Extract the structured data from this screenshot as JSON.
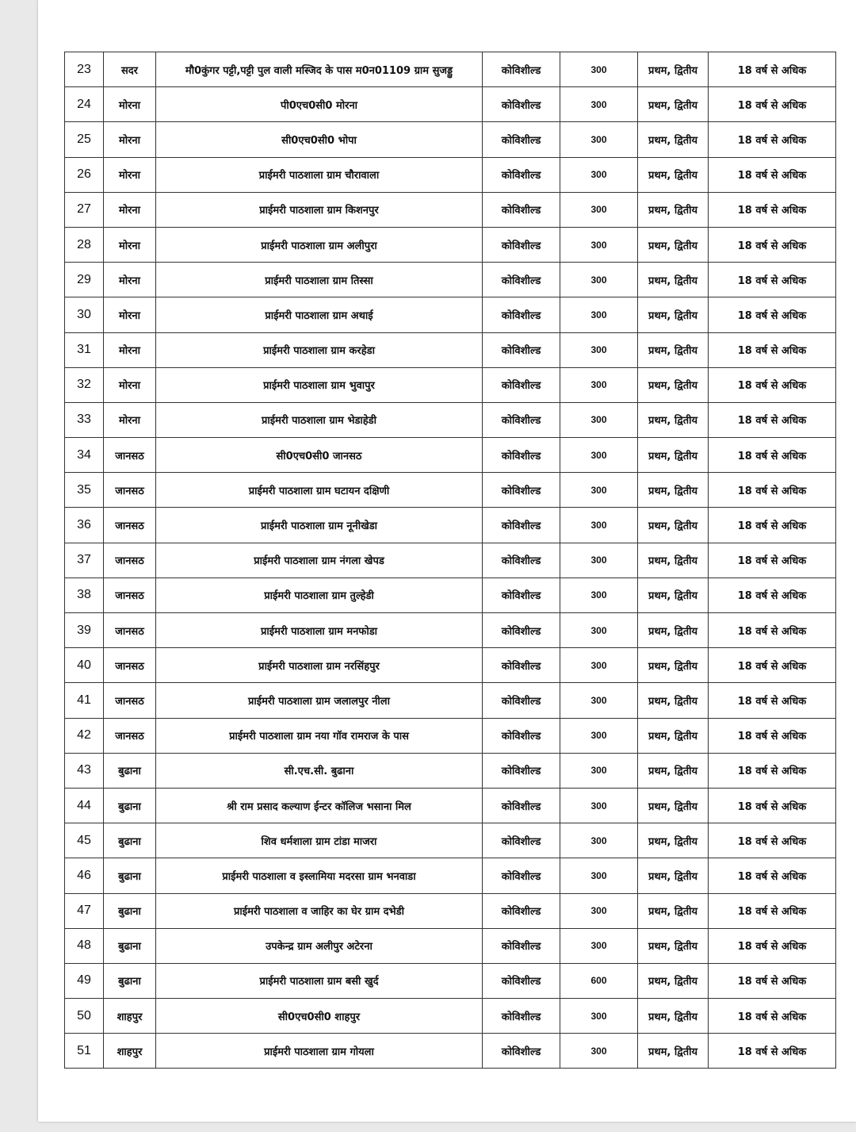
{
  "table": {
    "rows": [
      {
        "sn": "23",
        "block": "सदर",
        "site": "मौ0कुंगर पट्टी,पट्टी पुल वाली मस्जिद के पास म0न01109 ग्राम सुजड्डु",
        "vaccine": "कोविशील्ड",
        "doses": "300",
        "dose_type": "प्रथम, द्वितीय",
        "age": "18 वर्ष से अधिक"
      },
      {
        "sn": "24",
        "block": "मोरना",
        "site": "पी0एच0सी0 मोरना",
        "vaccine": "कोविशील्ड",
        "doses": "300",
        "dose_type": "प्रथम, द्वितीय",
        "age": "18 वर्ष से अधिक"
      },
      {
        "sn": "25",
        "block": "मोरना",
        "site": "सी0एच0सी0 भोपा",
        "vaccine": "कोविशील्ड",
        "doses": "300",
        "dose_type": "प्रथम, द्वितीय",
        "age": "18 वर्ष से अधिक"
      },
      {
        "sn": "26",
        "block": "मोरना",
        "site": "प्राईमरी पाठशाला ग्राम चौरावाला",
        "vaccine": "कोविशील्ड",
        "doses": "300",
        "dose_type": "प्रथम, द्वितीय",
        "age": "18 वर्ष से अधिक"
      },
      {
        "sn": "27",
        "block": "मोरना",
        "site": "प्राईमरी पाठशाला ग्राम किशनपुर",
        "vaccine": "कोविशील्ड",
        "doses": "300",
        "dose_type": "प्रथम, द्वितीय",
        "age": "18 वर्ष से अधिक"
      },
      {
        "sn": "28",
        "block": "मोरना",
        "site": "प्राईमरी पाठशाला ग्राम अलीपुरा",
        "vaccine": "कोविशील्ड",
        "doses": "300",
        "dose_type": "प्रथम, द्वितीय",
        "age": "18 वर्ष से अधिक"
      },
      {
        "sn": "29",
        "block": "मोरना",
        "site": "प्राईमरी पाठशाला ग्राम तिस्सा",
        "vaccine": "कोविशील्ड",
        "doses": "300",
        "dose_type": "प्रथम, द्वितीय",
        "age": "18 वर्ष से अधिक"
      },
      {
        "sn": "30",
        "block": "मोरना",
        "site": "प्राईमरी पाठशाला ग्राम अथाई",
        "vaccine": "कोविशील्ड",
        "doses": "300",
        "dose_type": "प्रथम, द्वितीय",
        "age": "18 वर्ष से अधिक"
      },
      {
        "sn": "31",
        "block": "मोरना",
        "site": "प्राईमरी पाठशाला ग्राम करहेडा",
        "vaccine": "कोविशील्ड",
        "doses": "300",
        "dose_type": "प्रथम, द्वितीय",
        "age": "18 वर्ष से अधिक"
      },
      {
        "sn": "32",
        "block": "मोरना",
        "site": "प्राईमरी पाठशाला ग्राम भुवापुर",
        "vaccine": "कोविशील्ड",
        "doses": "300",
        "dose_type": "प्रथम, द्वितीय",
        "age": "18 वर्ष से अधिक"
      },
      {
        "sn": "33",
        "block": "मोरना",
        "site": "प्राईमरी पाठशाला ग्राम भेडाहेडी",
        "vaccine": "कोविशील्ड",
        "doses": "300",
        "dose_type": "प्रथम, द्वितीय",
        "age": "18 वर्ष से अधिक"
      },
      {
        "sn": "34",
        "block": "जानसठ",
        "site": "सी0एच0सी0 जानसठ",
        "vaccine": "कोविशील्ड",
        "doses": "300",
        "dose_type": "प्रथम, द्वितीय",
        "age": "18 वर्ष से अधिक"
      },
      {
        "sn": "35",
        "block": "जानसठ",
        "site": "प्राईमरी पाठशाला ग्राम घटायन दक्षिणी",
        "vaccine": "कोविशील्ड",
        "doses": "300",
        "dose_type": "प्रथम, द्वितीय",
        "age": "18 वर्ष से अधिक"
      },
      {
        "sn": "36",
        "block": "जानसठ",
        "site": "प्राईमरी पाठशाला ग्राम नूनीखेडा",
        "vaccine": "कोविशील्ड",
        "doses": "300",
        "dose_type": "प्रथम, द्वितीय",
        "age": "18 वर्ष से अधिक"
      },
      {
        "sn": "37",
        "block": "जानसठ",
        "site": "प्राईमरी पाठशाला ग्राम नंगला खेपड",
        "vaccine": "कोविशील्ड",
        "doses": "300",
        "dose_type": "प्रथम, द्वितीय",
        "age": "18 वर्ष से अधिक"
      },
      {
        "sn": "38",
        "block": "जानसठ",
        "site": "प्राईमरी पाठशाला ग्राम तुल्हेडी",
        "vaccine": "कोविशील्ड",
        "doses": "300",
        "dose_type": "प्रथम, द्वितीय",
        "age": "18 वर्ष से अधिक"
      },
      {
        "sn": "39",
        "block": "जानसठ",
        "site": "प्राईमरी पाठशाला ग्राम मनफोडा",
        "vaccine": "कोविशील्ड",
        "doses": "300",
        "dose_type": "प्रथम, द्वितीय",
        "age": "18 वर्ष से अधिक"
      },
      {
        "sn": "40",
        "block": "जानसठ",
        "site": "प्राईमरी पाठशाला ग्राम नरसिंहपुर",
        "vaccine": "कोविशील्ड",
        "doses": "300",
        "dose_type": "प्रथम, द्वितीय",
        "age": "18 वर्ष से अधिक"
      },
      {
        "sn": "41",
        "block": "जानसठ",
        "site": "प्राईमरी पाठशाला ग्राम जलालपुर नीला",
        "vaccine": "कोविशील्ड",
        "doses": "300",
        "dose_type": "प्रथम, द्वितीय",
        "age": "18 वर्ष से अधिक"
      },
      {
        "sn": "42",
        "block": "जानसठ",
        "site": "प्राईमरी पाठशाला ग्राम नया गॉव रामराज के पास",
        "vaccine": "कोविशील्ड",
        "doses": "300",
        "dose_type": "प्रथम, द्वितीय",
        "age": "18 वर्ष से अधिक"
      },
      {
        "sn": "43",
        "block": "बुढाना",
        "site": "सी.एच.सी. बुढाना",
        "vaccine": "कोविशील्ड",
        "doses": "300",
        "dose_type": "प्रथम, द्वितीय",
        "age": "18 वर्ष से अधिक"
      },
      {
        "sn": "44",
        "block": "बुढाना",
        "site": "श्री राम प्रसाद कल्याण ईन्टर कॉलिज भसाना मिल",
        "vaccine": "कोविशील्ड",
        "doses": "300",
        "dose_type": "प्रथम, द्वितीय",
        "age": "18 वर्ष से अधिक"
      },
      {
        "sn": "45",
        "block": "बुढाना",
        "site": "शिव धर्मशाला ग्राम टांडा माजरा",
        "vaccine": "कोविशील्ड",
        "doses": "300",
        "dose_type": "प्रथम, द्वितीय",
        "age": "18 वर्ष से अधिक"
      },
      {
        "sn": "46",
        "block": "बुढाना",
        "site": "प्राईमरी पाठशाला  व इस्लामिया मदरसा ग्राम भनवाडा",
        "vaccine": "कोविशील्ड",
        "doses": "300",
        "dose_type": "प्रथम, द्वितीय",
        "age": "18 वर्ष से अधिक"
      },
      {
        "sn": "47",
        "block": "बुढाना",
        "site": "प्राईमरी पाठशाला व जाहिर का घेर ग्राम दभेडी",
        "vaccine": "कोविशील्ड",
        "doses": "300",
        "dose_type": "प्रथम, द्वितीय",
        "age": "18 वर्ष से अधिक"
      },
      {
        "sn": "48",
        "block": "बुढाना",
        "site": "उपकेन्द्र ग्राम अलीपुर अटेरना",
        "vaccine": "कोविशील्ड",
        "doses": "300",
        "dose_type": "प्रथम, द्वितीय",
        "age": "18 वर्ष से अधिक"
      },
      {
        "sn": "49",
        "block": "बुढाना",
        "site": "प्राईमरी पाठशाला ग्राम बसी खुर्द",
        "vaccine": "कोविशील्ड",
        "doses": "600",
        "dose_type": "प्रथम, द्वितीय",
        "age": "18 वर्ष से अधिक"
      },
      {
        "sn": "50",
        "block": "शाहपुर",
        "site": "सी0एच0सी0 शाहपुर",
        "vaccine": "कोविशील्ड",
        "doses": "300",
        "dose_type": "प्रथम, द्वितीय",
        "age": "18 वर्ष से अधिक"
      },
      {
        "sn": "51",
        "block": "शाहपुर",
        "site": "प्राईमरी पाठशाला ग्राम गोयला",
        "vaccine": "कोविशील्ड",
        "doses": "300",
        "dose_type": "प्रथम, द्वितीय",
        "age": "18 वर्ष से अधिक"
      }
    ]
  }
}
